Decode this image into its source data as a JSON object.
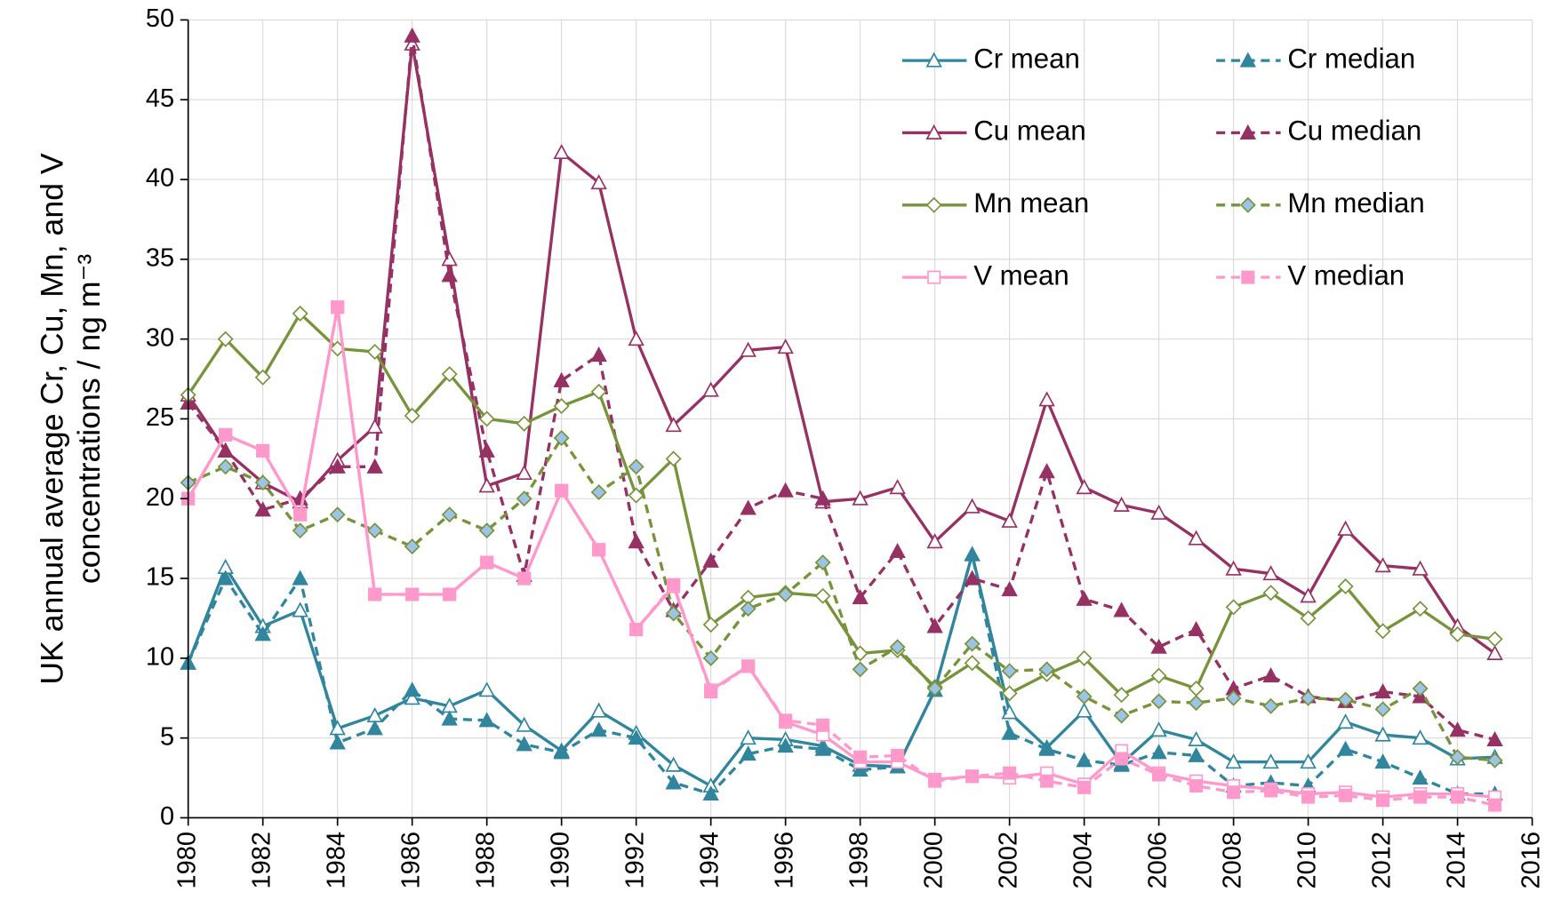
{
  "chart_data": {
    "type": "line",
    "ylabel": [
      "UK annual average Cr, Cu, Mn, and V",
      "concentrations / ng m⁻³"
    ],
    "x": [
      1980,
      1981,
      1982,
      1983,
      1984,
      1985,
      1986,
      1987,
      1988,
      1989,
      1990,
      1991,
      1992,
      1993,
      1994,
      1995,
      1996,
      1997,
      1998,
      1999,
      2000,
      2001,
      2002,
      2003,
      2004,
      2005,
      2006,
      2007,
      2008,
      2009,
      2010,
      2011,
      2012,
      2013,
      2014,
      2015
    ],
    "xlim": [
      1980,
      2016
    ],
    "xticks": [
      1980,
      1982,
      1984,
      1986,
      1988,
      1990,
      1992,
      1994,
      1996,
      1998,
      2000,
      2002,
      2004,
      2006,
      2008,
      2010,
      2012,
      2014,
      2016
    ],
    "ylim": [
      0,
      50
    ],
    "yticks": [
      0,
      5,
      10,
      15,
      20,
      25,
      30,
      35,
      40,
      45,
      50
    ],
    "grid": true,
    "legend": "upper right",
    "series": [
      {
        "name": "Cr mean",
        "color": "#31859c",
        "marker": "triangle",
        "dashed": false,
        "marker_fill": "#ffffff",
        "values": [
          9.7,
          15.7,
          12,
          13,
          5.6,
          6.4,
          7.5,
          7,
          8,
          5.8,
          4.2,
          6.7,
          5.3,
          3.3,
          2,
          5,
          4.9,
          4.5,
          3.3,
          3.2,
          8,
          16.5,
          6.6,
          4.4,
          6.7,
          3.4,
          5.5,
          4.9,
          3.5,
          3.5,
          3.5,
          6,
          5.2,
          5,
          3.7,
          3.8
        ]
      },
      {
        "name": "Cr median",
        "color": "#31859c",
        "marker": "triangle",
        "dashed": true,
        "marker_fill": "#31859c",
        "values": [
          9.7,
          15,
          11.5,
          15,
          4.7,
          5.6,
          8,
          6.2,
          6.1,
          4.6,
          4.1,
          5.5,
          5,
          2.2,
          1.5,
          4,
          4.5,
          4.3,
          3,
          3.2,
          8,
          16.5,
          5.3,
          4.3,
          3.6,
          3.3,
          4.1,
          3.9,
          2,
          2.2,
          2,
          4.3,
          3.5,
          2.5,
          1.5,
          1.5
        ]
      },
      {
        "name": "Cu mean",
        "color": "#953163",
        "marker": "triangle",
        "dashed": false,
        "marker_fill": "#ffffff",
        "values": [
          26.5,
          23,
          21,
          19.8,
          22.4,
          24.5,
          48.5,
          35,
          20.8,
          21.6,
          41.7,
          39.8,
          30,
          24.6,
          26.8,
          29.3,
          29.5,
          19.8,
          20,
          20.7,
          17.3,
          19.5,
          18.6,
          26.2,
          20.7,
          19.6,
          19.1,
          17.5,
          15.6,
          15.3,
          13.9,
          18.1,
          15.8,
          15.6,
          12,
          10.3
        ]
      },
      {
        "name": "Cu median",
        "color": "#953163",
        "marker": "triangle",
        "dashed": true,
        "marker_fill": "#953163",
        "values": [
          26,
          23,
          19.3,
          20,
          22,
          22,
          49,
          34,
          23,
          15.2,
          27.4,
          29,
          17.3,
          13,
          16.1,
          19.4,
          20.5,
          20,
          13.8,
          16.7,
          12,
          15,
          14.3,
          21.7,
          13.7,
          13,
          10.7,
          11.8,
          8.1,
          8.9,
          7.6,
          7.3,
          7.9,
          7.6,
          5.5,
          4.9
        ]
      },
      {
        "name": "Mn mean",
        "color": "#77933c",
        "marker": "diamond",
        "dashed": false,
        "marker_fill": "#ffffff",
        "values": [
          26.5,
          30,
          27.6,
          31.6,
          29.4,
          29.2,
          25.2,
          27.8,
          25,
          24.7,
          25.8,
          26.7,
          20.2,
          22.5,
          12.1,
          13.8,
          14.1,
          13.9,
          10.3,
          10.5,
          8.2,
          9.7,
          7.8,
          9,
          10,
          7.7,
          8.9,
          8.1,
          13.2,
          14.1,
          12.5,
          14.5,
          11.7,
          13.1,
          11.5,
          11.2
        ]
      },
      {
        "name": "Mn median",
        "color": "#77933c",
        "marker": "diamond",
        "dashed": true,
        "marker_fill": "#9dc3e6",
        "values": [
          21,
          22,
          21,
          18,
          19,
          18,
          17,
          19,
          18,
          20,
          23.8,
          20.4,
          22,
          12.8,
          10,
          13.1,
          14,
          16,
          9.3,
          10.7,
          8.1,
          10.9,
          9.2,
          9.3,
          7.6,
          6.4,
          7.3,
          7.2,
          7.5,
          7,
          7.5,
          7.4,
          6.8,
          8.1,
          3.8,
          3.6
        ]
      },
      {
        "name": "V mean",
        "color": "#ff99cc",
        "marker": "square",
        "dashed": false,
        "marker_fill": "#ffffff",
        "values": [
          20,
          24,
          23,
          19,
          32,
          14,
          14,
          14,
          16,
          15,
          20.5,
          16.8,
          11.8,
          14.5,
          8,
          9.5,
          6,
          5.2,
          3.5,
          3.5,
          2.4,
          2.6,
          2.5,
          2.8,
          2.1,
          4.2,
          2.8,
          2.3,
          2,
          1.8,
          1.5,
          1.6,
          1.3,
          1.5,
          1.5,
          1.3
        ]
      },
      {
        "name": "V median",
        "color": "#ff99cc",
        "marker": "square",
        "dashed": true,
        "marker_fill": "#ff99cc",
        "values": [
          20,
          24,
          23,
          19,
          32,
          14,
          14,
          14,
          16,
          15,
          20.5,
          16.8,
          11.8,
          14.6,
          7.9,
          9.5,
          6.1,
          5.8,
          3.8,
          3.9,
          2.3,
          2.6,
          2.8,
          2.3,
          1.9,
          3.7,
          2.7,
          2,
          1.6,
          1.7,
          1.3,
          1.4,
          1.1,
          1.3,
          1.3,
          0.8
        ]
      }
    ]
  }
}
